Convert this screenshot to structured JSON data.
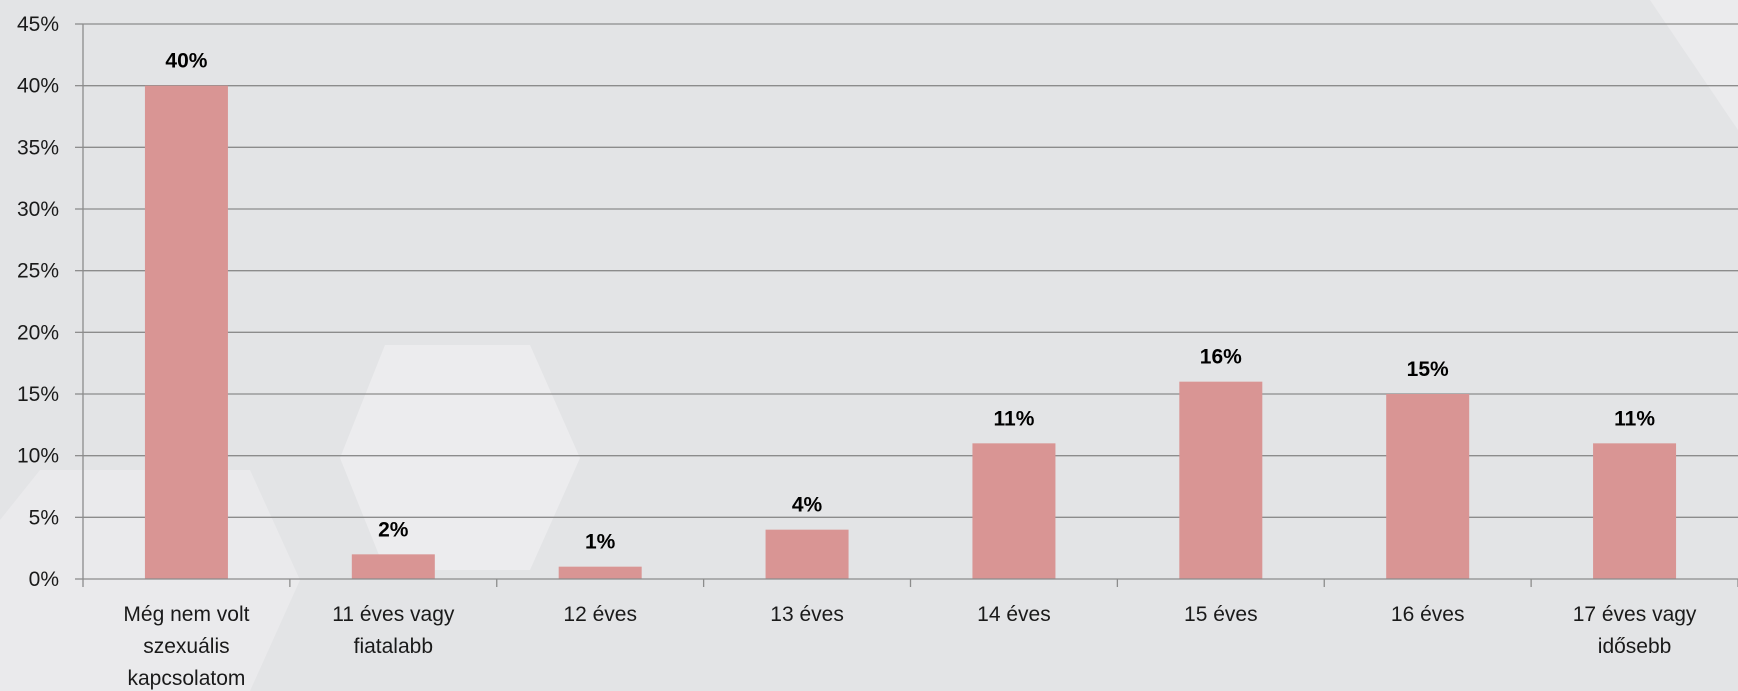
{
  "chart_data": {
    "type": "bar",
    "categories": [
      [
        "Még nem volt",
        "szexuális",
        "kapcsolatom"
      ],
      [
        "11 éves vagy",
        "fiatalabb"
      ],
      [
        "12 éves"
      ],
      [
        "13 éves"
      ],
      [
        "14 éves"
      ],
      [
        "15 éves"
      ],
      [
        "16 éves"
      ],
      [
        "17 éves vagy",
        "idősebb"
      ]
    ],
    "values": [
      40,
      2,
      1,
      4,
      11,
      16,
      15,
      11
    ],
    "data_labels": [
      "40%",
      "2%",
      "1%",
      "4%",
      "11%",
      "16%",
      "15%",
      "11%"
    ],
    "y_ticks": [
      "0%",
      "5%",
      "10%",
      "15%",
      "20%",
      "25%",
      "30%",
      "35%",
      "40%",
      "45%"
    ],
    "ylim": [
      0,
      45
    ],
    "y_step": 5,
    "grid": true,
    "legend": "none",
    "colors": {
      "bar": "#d99594",
      "grid": "#8c8c8c",
      "axis": "#8c8c8c",
      "background": "#e3e4e6",
      "hex_decoration": "#eeeeef"
    }
  }
}
